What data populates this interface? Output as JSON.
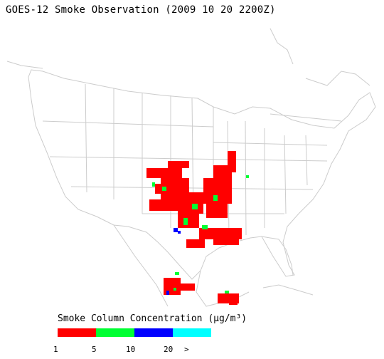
{
  "title": "GOES-12 Smoke Observation (2009 10 20  2200Z)",
  "legend": {
    "title": "Smoke Column Concentration (μg/m³)",
    "colors": [
      "#ff0000",
      "#00ff33",
      "#0000ff",
      "#00ffff"
    ],
    "ticks": [
      "1",
      "5",
      "10",
      "20",
      ">"
    ]
  },
  "map": {
    "region": "continental United States",
    "boundary_color": "#cccccc"
  }
}
